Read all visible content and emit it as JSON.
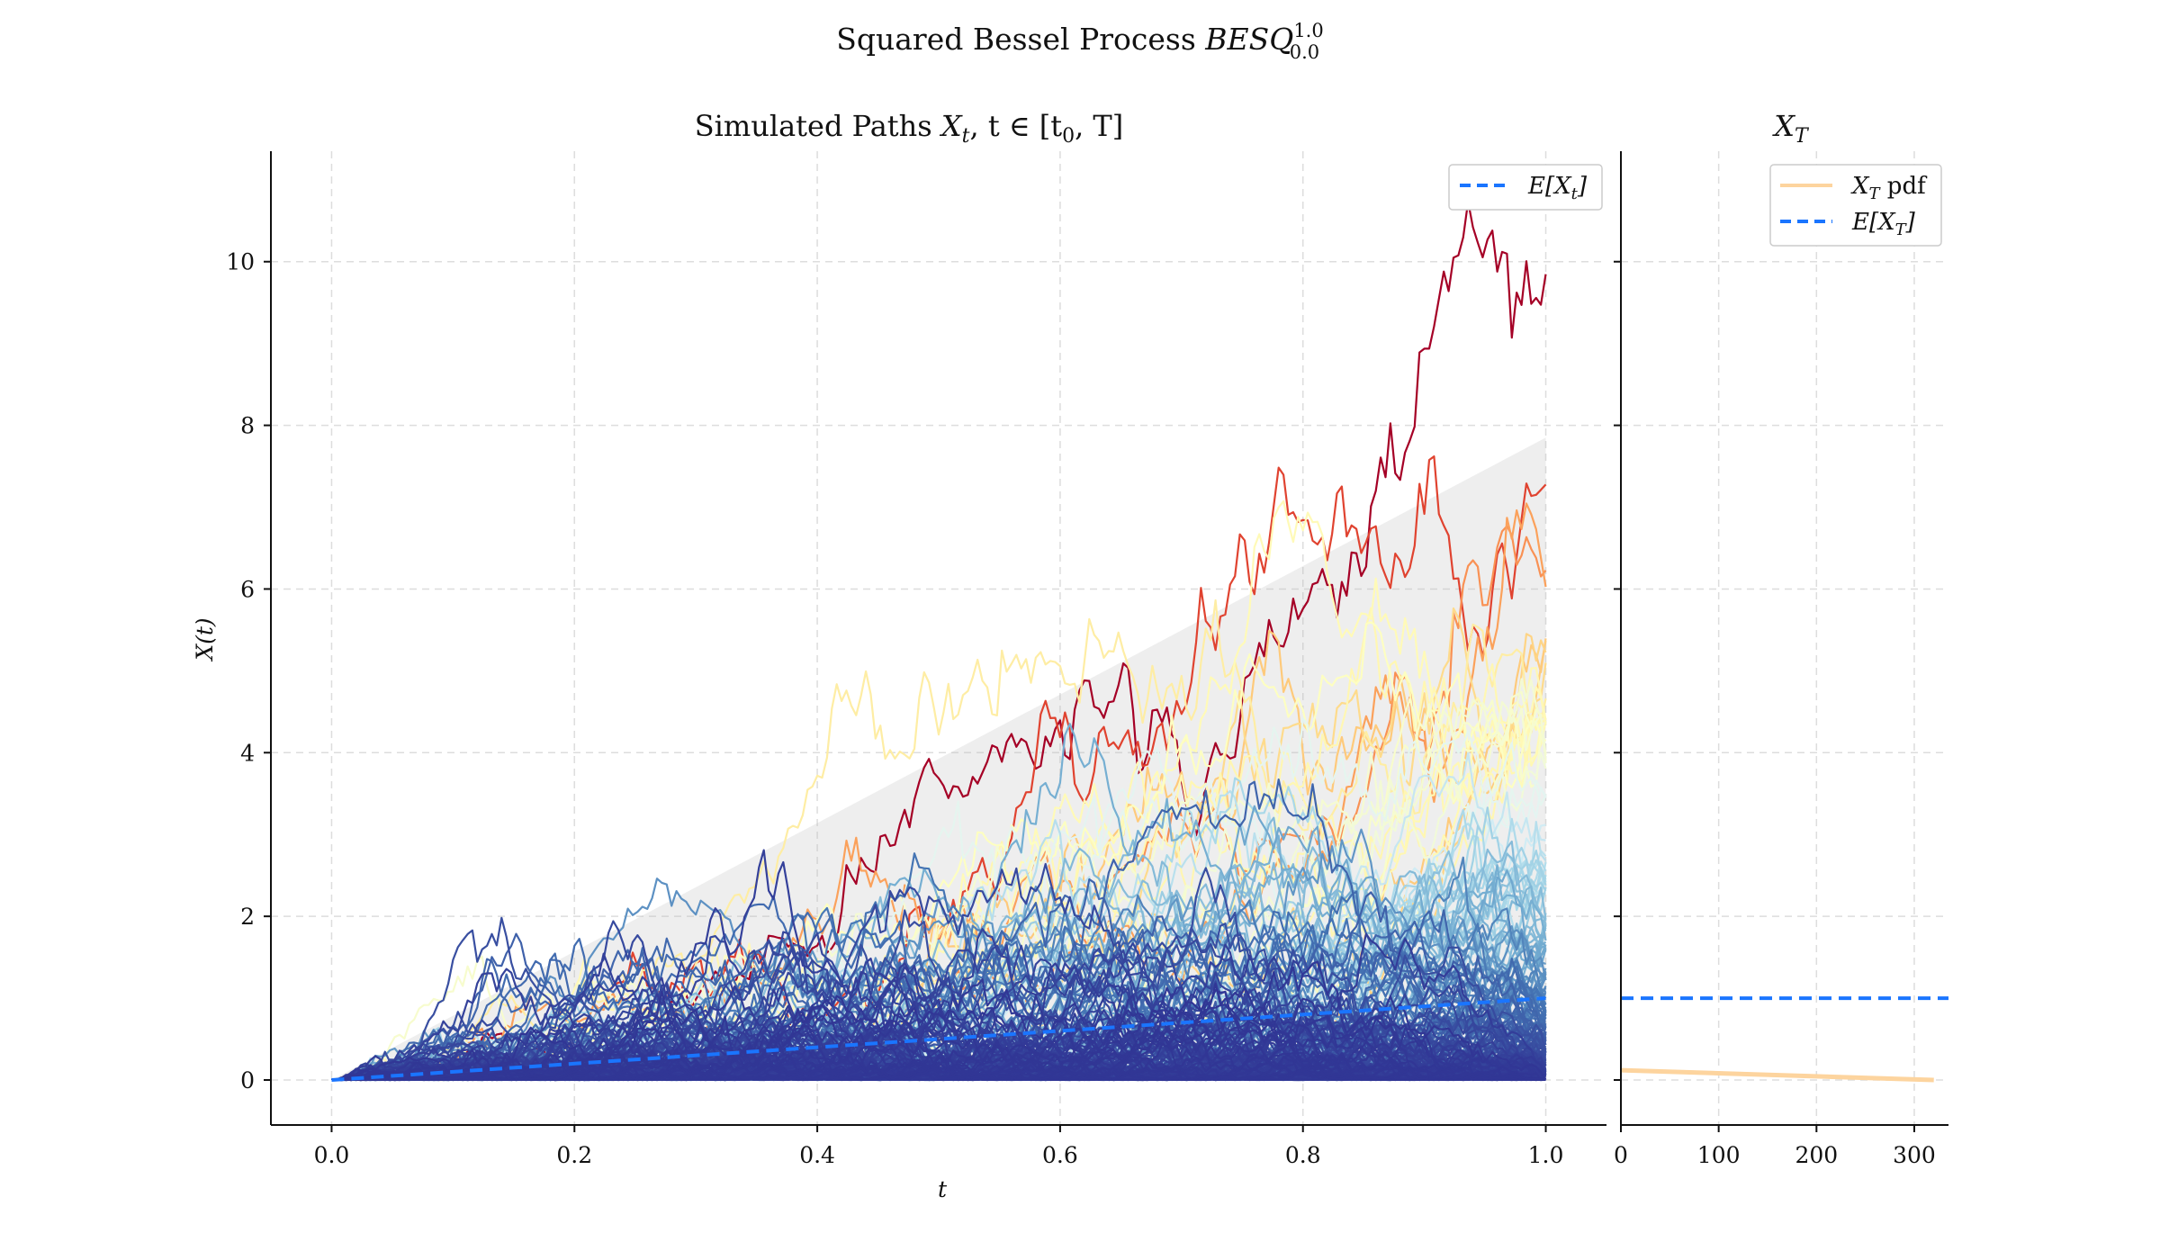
{
  "suptitle": {
    "main": "Squared Bessel Process ",
    "symbol": "BESQ",
    "sup": "1.0",
    "sub": "0.0"
  },
  "chart_data": [
    {
      "type": "line",
      "title": "Simulated Paths X_t, t ∈ [t_0, T]",
      "title_parts": {
        "text": "Simulated Paths ",
        "math": "X",
        "sub": "t",
        "rest": ", t ∈ [t",
        "sub2": "0",
        "end": ", T]"
      },
      "xlabel": "t",
      "ylabel": "X(t)",
      "xlim": [
        -0.05,
        1.05
      ],
      "ylim": [
        -0.55,
        11.35
      ],
      "xticks": [
        0.0,
        0.2,
        0.4,
        0.6,
        0.8,
        1.0
      ],
      "xtick_labels": [
        "0.0",
        "0.2",
        "0.4",
        "0.6",
        "0.8",
        "1.0"
      ],
      "yticks": [
        0,
        2,
        4,
        6,
        8,
        10
      ],
      "ytick_labels": [
        "0",
        "2",
        "4",
        "6",
        "8",
        "10"
      ],
      "grid": true,
      "n_paths": 220,
      "path_colormap": [
        "#313695",
        "#4575b4",
        "#74add1",
        "#abd9e9",
        "#e0f3f8",
        "#ffffbf",
        "#fee090",
        "#fdae61",
        "#f46d43",
        "#d73027",
        "#a50026"
      ],
      "shaded_band": {
        "x": [
          0.0,
          1.0
        ],
        "lower": [
          0.0,
          0.0
        ],
        "upper": [
          0.0,
          7.85
        ],
        "color": "#bbbbbb"
      },
      "series": [
        {
          "name": "E[X_t]",
          "x": [
            0.0,
            0.2,
            0.4,
            0.6,
            0.8,
            1.0
          ],
          "values": [
            0.0,
            0.2,
            0.4,
            0.6,
            0.8,
            1.0
          ],
          "color": "#1a75ff",
          "style": "dashed"
        }
      ],
      "legend": {
        "placement": "top-right",
        "entries": [
          {
            "math": "E[X",
            "sub": "t",
            "end": "]"
          }
        ]
      }
    },
    {
      "type": "line",
      "title": "X_T",
      "title_parts": {
        "math": "X",
        "sub": "T"
      },
      "xlim": [
        0,
        335
      ],
      "ylim": [
        -0.55,
        11.35
      ],
      "xticks": [
        0,
        100,
        200,
        300
      ],
      "xtick_labels": [
        "0",
        "100",
        "200",
        "300"
      ],
      "grid": true,
      "series": [
        {
          "name": "X_T pdf",
          "x": [
            0,
            320
          ],
          "values": [
            0.12,
            0.0
          ],
          "color": "#fdd49e",
          "style": "solid"
        },
        {
          "name": "E[X_T]",
          "x": [
            0,
            335
          ],
          "values": [
            1.0,
            1.0
          ],
          "color": "#1a75ff",
          "style": "dashed"
        }
      ],
      "legend": {
        "placement": "top-right",
        "entries": [
          {
            "math": "X",
            "sub": "T",
            "end": " pdf"
          },
          {
            "math": "E[X",
            "sub": "T",
            "end": "]"
          }
        ]
      }
    }
  ]
}
